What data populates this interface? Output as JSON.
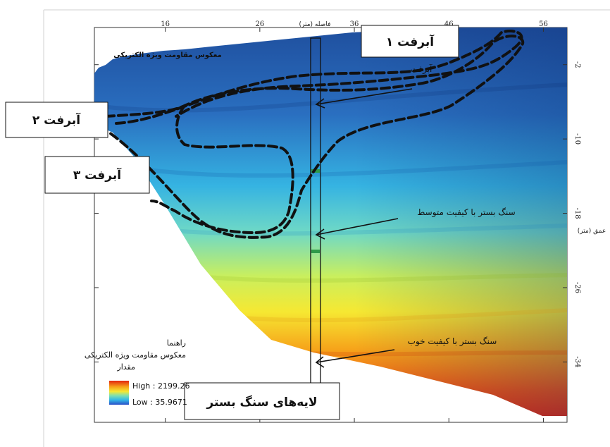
{
  "chart_data": {
    "type": "heatmap",
    "title": "معکوس مقاومت ویژه الکتریکی",
    "xlabel": "فاصله (متر)",
    "ylabel": "عمق (متر)",
    "x_ticks": [
      "16",
      "26",
      "36",
      "46",
      "56"
    ],
    "x_tick_values": [
      16,
      26,
      36,
      46,
      56
    ],
    "y_ticks": [
      "-2",
      "-10",
      "-18",
      "-26",
      "-34"
    ],
    "y_tick_values": [
      -2,
      -10,
      -18,
      -26,
      -34
    ],
    "xlim": [
      8.5,
      58.5
    ],
    "ylim": [
      -40.5,
      2
    ],
    "colorscale": {
      "high_label": "High : 2199.26",
      "low_label": "Low : 35.9671",
      "high": 2199.26,
      "low": 35.9671,
      "colors": [
        "#1f4fa0",
        "#2a78c8",
        "#33c7e8",
        "#7fe0b0",
        "#f2f23a",
        "#f7a21a",
        "#e8260f"
      ]
    },
    "legend": {
      "title": "راهنما",
      "subtitle": "معکوس مقاومت ویژه الکتریکی",
      "value_label": "مقدار"
    },
    "annotations": {
      "alluvium_1": "آبرفت ۱",
      "alluvium_1_small": "آبرفت",
      "alluvium_2": "آبرفت ۲",
      "alluvium_3": "آبرفت ۳",
      "bedrock_medium": "سنگ بستر با کیفیت متوسط",
      "bedrock_good": "سنگ بستر با کیفیت خوب",
      "bedrock_layers": "لایه‌های سنگ بستر"
    },
    "grid": false
  }
}
